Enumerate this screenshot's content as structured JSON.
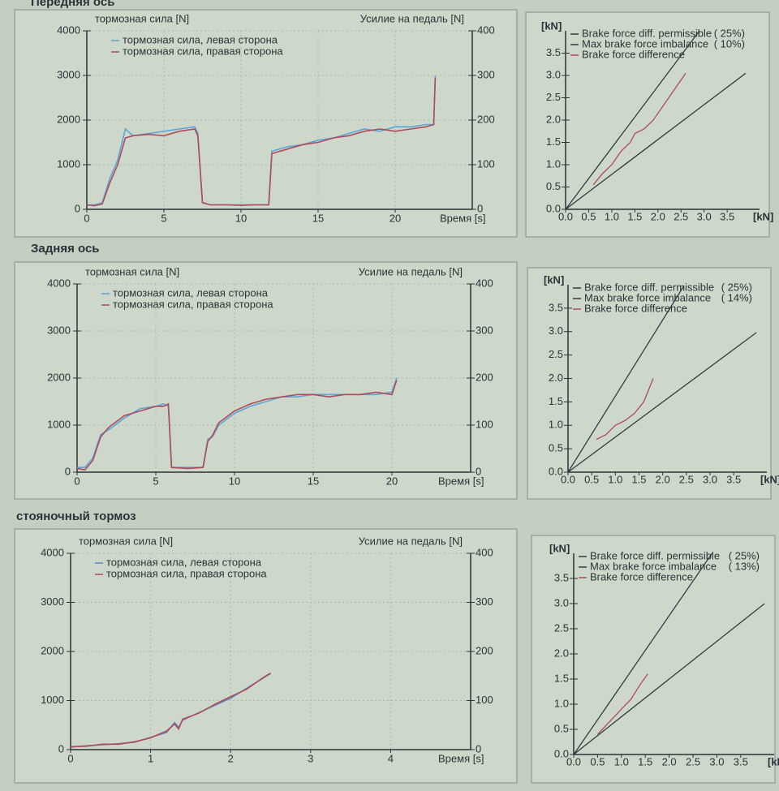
{
  "sections": [
    {
      "title": "Передняя ось"
    },
    {
      "title": "Задняя ось"
    },
    {
      "title": "стояночный тормоз"
    }
  ],
  "chart_data": [
    {
      "type": "line",
      "ylabel": "тормозная сила [N]",
      "y2label": "Усилие на педаль [N]",
      "xlabel": "Время [s]",
      "x": [
        0,
        0.5,
        1,
        1.5,
        2,
        2.5,
        3,
        4,
        5,
        6,
        7,
        7.2,
        7.5,
        8,
        9,
        10,
        11,
        11.8,
        12,
        13,
        14,
        15,
        16,
        17,
        18,
        19,
        20,
        21,
        22,
        22.5,
        22.6
      ],
      "series": [
        {
          "name": "тормозная сила, левая сторона",
          "color": "#5aa6d6",
          "values": [
            100,
            100,
            150,
            700,
            1100,
            1800,
            1650,
            1700,
            1750,
            1800,
            1850,
            1700,
            150,
            100,
            100,
            100,
            100,
            100,
            1300,
            1400,
            1450,
            1550,
            1600,
            1700,
            1800,
            1750,
            1850,
            1850,
            1900,
            1900,
            3000
          ]
        },
        {
          "name": "тормозная сила, правая сторона",
          "color": "#b04a5a",
          "values": [
            100,
            80,
            120,
            600,
            1000,
            1600,
            1650,
            1680,
            1650,
            1750,
            1800,
            1650,
            150,
            100,
            100,
            90,
            100,
            100,
            1250,
            1350,
            1450,
            1500,
            1600,
            1650,
            1750,
            1800,
            1750,
            1800,
            1850,
            1900,
            2950
          ]
        }
      ],
      "xlim": [
        0,
        25
      ],
      "xticks": [
        0,
        5,
        10,
        15,
        20
      ],
      "ylim": [
        0,
        4000
      ],
      "yticks": [
        0,
        1000,
        2000,
        3000,
        4000
      ],
      "y2lim": [
        0,
        400
      ],
      "y2ticks": [
        0,
        100,
        200,
        300,
        400
      ],
      "grid": true
    },
    {
      "type": "line",
      "ylabel": "[kN]",
      "xlabel": "[kN]",
      "series": [
        {
          "name": "Brake force diff. permissible",
          "note": "( 25%)",
          "color": "#2e3d44",
          "x": [
            0,
            2.9
          ],
          "values": [
            0,
            4.0
          ]
        },
        {
          "name": "Max brake force imbalance",
          "note": "( 10%)",
          "color": "#2e3d44",
          "x": [
            0,
            3.9
          ],
          "values": [
            0,
            3.05
          ]
        },
        {
          "name": "Brake force difference",
          "color": "#b04a5a",
          "x": [
            0.6,
            0.8,
            1.0,
            1.2,
            1.4,
            1.5,
            1.7,
            1.9,
            2.1,
            2.3,
            2.6
          ],
          "values": [
            0.55,
            0.8,
            1.0,
            1.3,
            1.5,
            1.7,
            1.8,
            2.0,
            2.3,
            2.6,
            3.05
          ]
        }
      ],
      "xlim": [
        0,
        4.2
      ],
      "xticks": [
        {
          "value": 0,
          "label": "0.0"
        },
        {
          "value": 0.5,
          "label": "0.5"
        },
        {
          "value": 1,
          "label": "1.0"
        },
        {
          "value": 1.5,
          "label": "1.5"
        },
        {
          "value": 2,
          "label": "2.0"
        },
        {
          "value": 2.5,
          "label": "2.5"
        },
        {
          "value": 3,
          "label": "3.0"
        },
        {
          "value": 3.5,
          "label": "3.5"
        }
      ],
      "ylim": [
        0,
        4
      ],
      "yticks": [
        {
          "value": 0,
          "label": "0.0"
        },
        {
          "value": 0.5,
          "label": "0.5"
        },
        {
          "value": 1,
          "label": "1.0"
        },
        {
          "value": 1.5,
          "label": "1.5"
        },
        {
          "value": 2,
          "label": "2.0"
        },
        {
          "value": 2.5,
          "label": "2.5"
        },
        {
          "value": 3,
          "label": "3.0"
        },
        {
          "value": 3.5,
          "label": "3.5"
        }
      ],
      "grid": false
    },
    {
      "type": "line",
      "ylabel": "тормозная сила [N]",
      "y2label": "Усилие на педаль [N]",
      "xlabel": "Время [s]",
      "x": [
        0,
        0.5,
        1,
        1.5,
        2,
        3,
        4,
        5,
        5.5,
        5.8,
        6,
        7,
        8,
        8.3,
        8.6,
        9,
        10,
        11,
        12,
        13,
        14,
        15,
        16,
        17,
        18,
        19,
        20,
        20.3
      ],
      "series": [
        {
          "name": "тормозная сила, левая сторона",
          "color": "#5aa6d6",
          "values": [
            100,
            100,
            300,
            800,
            900,
            1150,
            1350,
            1400,
            1450,
            1400,
            100,
            100,
            100,
            700,
            750,
            1000,
            1250,
            1400,
            1500,
            1600,
            1600,
            1650,
            1650,
            1650,
            1650,
            1650,
            1700,
            2000
          ]
        },
        {
          "name": "тормозная сила, правая сторона",
          "color": "#b04a5a",
          "values": [
            80,
            50,
            250,
            750,
            950,
            1200,
            1300,
            1400,
            1400,
            1450,
            100,
            80,
            100,
            650,
            780,
            1050,
            1300,
            1450,
            1550,
            1600,
            1650,
            1650,
            1600,
            1650,
            1650,
            1700,
            1650,
            1950
          ]
        }
      ],
      "xlim": [
        0,
        25
      ],
      "xticks": [
        0,
        5,
        10,
        15,
        20
      ],
      "ylim": [
        0,
        4000
      ],
      "yticks": [
        0,
        1000,
        2000,
        3000,
        4000
      ],
      "y2lim": [
        0,
        400
      ],
      "y2ticks": [
        0,
        100,
        200,
        300,
        400
      ],
      "grid": true
    },
    {
      "type": "line",
      "ylabel": "[kN]",
      "xlabel": "[kN]",
      "series": [
        {
          "name": "Brake force diff. permissible",
          "note": "( 25%)",
          "color": "#2e3d44",
          "x": [
            0,
            2.45
          ],
          "values": [
            0,
            3.98
          ]
        },
        {
          "name": "Max brake force imbalance",
          "note": "( 14%)",
          "color": "#2e3d44",
          "x": [
            0,
            3.98
          ],
          "values": [
            0,
            2.98
          ]
        },
        {
          "name": "Brake force difference",
          "color": "#b04a5a",
          "x": [
            0.6,
            0.8,
            1.0,
            1.2,
            1.4,
            1.6,
            1.8
          ],
          "values": [
            0.7,
            0.8,
            1.0,
            1.1,
            1.25,
            1.5,
            2.0
          ]
        }
      ],
      "xlim": [
        0,
        4.2
      ],
      "xticks": [
        {
          "value": 0,
          "label": "0.0"
        },
        {
          "value": 0.5,
          "label": "0.5"
        },
        {
          "value": 1,
          "label": "1.0"
        },
        {
          "value": 1.5,
          "label": "1.5"
        },
        {
          "value": 2,
          "label": "2.0"
        },
        {
          "value": 2.5,
          "label": "2.5"
        },
        {
          "value": 3,
          "label": "3.0"
        },
        {
          "value": 3.5,
          "label": "3.5"
        }
      ],
      "ylim": [
        0,
        4
      ],
      "yticks": [
        {
          "value": 0,
          "label": "0.0"
        },
        {
          "value": 0.5,
          "label": "0.5"
        },
        {
          "value": 1,
          "label": "1.0"
        },
        {
          "value": 1.5,
          "label": "1.5"
        },
        {
          "value": 2,
          "label": "2.0"
        },
        {
          "value": 2.5,
          "label": "2.5"
        },
        {
          "value": 3,
          "label": "3.0"
        },
        {
          "value": 3.5,
          "label": "3.5"
        }
      ],
      "grid": false
    },
    {
      "type": "line",
      "ylabel": "тормозная сила [N]",
      "y2label": "Усилие на педаль [N]",
      "xlabel": "Время [s]",
      "x": [
        0,
        0.2,
        0.4,
        0.6,
        0.8,
        1.0,
        1.2,
        1.3,
        1.35,
        1.4,
        1.6,
        1.8,
        2.0,
        2.2,
        2.4,
        2.5
      ],
      "series": [
        {
          "name": "тормозная сила, левая сторона",
          "color": "#5a86c6",
          "values": [
            50,
            80,
            100,
            120,
            150,
            250,
            350,
            550,
            450,
            600,
            750,
            900,
            1050,
            1250,
            1450,
            1550
          ]
        },
        {
          "name": "тормозная сила, правая сторона",
          "color": "#b04a5a",
          "values": [
            60,
            70,
            110,
            110,
            160,
            240,
            380,
            520,
            420,
            620,
            740,
            920,
            1080,
            1230,
            1460,
            1560
          ]
        }
      ],
      "xlim": [
        0,
        5
      ],
      "xticks": [
        0,
        1,
        2,
        3,
        4
      ],
      "ylim": [
        0,
        4000
      ],
      "yticks": [
        0,
        1000,
        2000,
        3000,
        4000
      ],
      "y2lim": [
        0,
        400
      ],
      "y2ticks": [
        0,
        100,
        200,
        300,
        400
      ],
      "grid": true
    },
    {
      "type": "line",
      "ylabel": "[kN]",
      "xlabel": "[kN]",
      "series": [
        {
          "name": "Brake force diff. permissible",
          "note": "( 25%)",
          "color": "#2e3d44",
          "x": [
            0,
            2.9
          ],
          "values": [
            0,
            4.0
          ]
        },
        {
          "name": "Max brake force imbalance",
          "note": "( 13%)",
          "color": "#2e3d44",
          "x": [
            0,
            4.0
          ],
          "values": [
            0,
            3.0
          ]
        },
        {
          "name": "Brake force difference",
          "color": "#b04a5a",
          "x": [
            0.5,
            0.8,
            1.0,
            1.2,
            1.4,
            1.55
          ],
          "values": [
            0.4,
            0.7,
            0.9,
            1.1,
            1.4,
            1.6
          ]
        }
      ],
      "xlim": [
        0,
        4.2
      ],
      "xticks": [
        {
          "value": 0,
          "label": "0.0"
        },
        {
          "value": 0.5,
          "label": "0.5"
        },
        {
          "value": 1,
          "label": "1.0"
        },
        {
          "value": 1.5,
          "label": "1.5"
        },
        {
          "value": 2,
          "label": "2.0"
        },
        {
          "value": 2.5,
          "label": "2.5"
        },
        {
          "value": 3,
          "label": "3.0"
        },
        {
          "value": 3.5,
          "label": "3.5"
        }
      ],
      "ylim": [
        0,
        4
      ],
      "yticks": [
        {
          "value": 0,
          "label": "0.0"
        },
        {
          "value": 0.5,
          "label": "0.5"
        },
        {
          "value": 1,
          "label": "1.0"
        },
        {
          "value": 1.5,
          "label": "1.5"
        },
        {
          "value": 2,
          "label": "2.0"
        },
        {
          "value": 2.5,
          "label": "2.5"
        },
        {
          "value": 3,
          "label": "3.0"
        },
        {
          "value": 3.5,
          "label": "3.5"
        }
      ],
      "grid": false
    }
  ]
}
